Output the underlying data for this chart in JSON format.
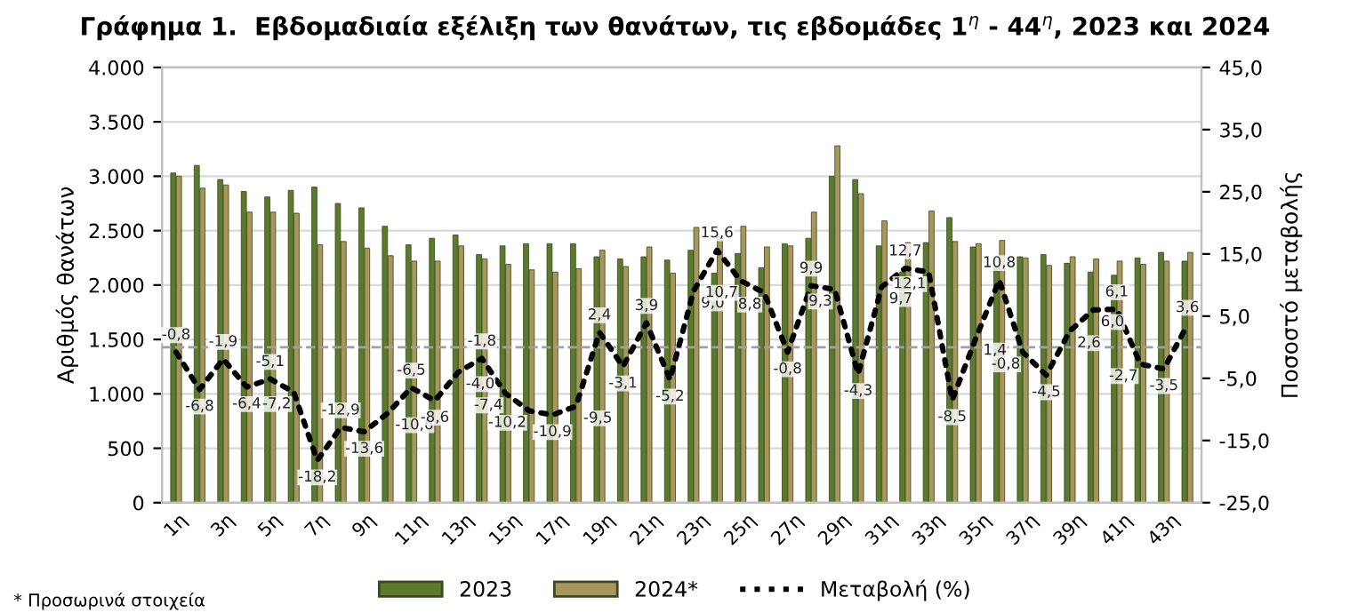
{
  "chart_data": {
    "type": "bar",
    "title": "Γράφημα 1.  Εβδομαδιαία εξέλιξη των θανάτων, τις εβδομάδες 1$^{η}$ - 44$^{η}$, 2023 και 2024",
    "ylabel": "Αριθμός θανάτων",
    "y2label": "Ποσοστό μεταβολής",
    "categories": [
      "1η",
      null,
      "3η",
      null,
      "5η",
      null,
      "7η",
      null,
      "9η",
      null,
      "11η",
      null,
      "13η",
      null,
      "15η",
      null,
      "17η",
      null,
      "19η",
      null,
      "21η",
      null,
      "23η",
      null,
      "25η",
      null,
      "27η",
      null,
      "29η",
      null,
      "31η",
      null,
      "33η",
      null,
      "35η",
      null,
      "37η",
      null,
      "39η",
      null,
      "41η",
      null,
      "43η",
      null
    ],
    "series": [
      {
        "name": "2023",
        "color": "#5b7a2c",
        "values": [
          3030,
          3100,
          2970,
          2860,
          2810,
          2870,
          2900,
          2750,
          2710,
          2540,
          2370,
          2430,
          2460,
          2280,
          2360,
          2380,
          2380,
          2380,
          2260,
          2240,
          2260,
          2230,
          2320,
          2110,
          2290,
          2160,
          2380,
          2430,
          3000,
          2970,
          2360,
          2120,
          2390,
          2620,
          2350,
          2170,
          2260,
          2280,
          2200,
          2120,
          2090,
          2250,
          2300,
          2220
        ]
      },
      {
        "name": "2024*",
        "color": "#a8965a",
        "values": [
          3000,
          2890,
          2920,
          2670,
          2670,
          2660,
          2370,
          2400,
          2340,
          2270,
          2220,
          2220,
          2360,
          2240,
          2190,
          2140,
          2120,
          2150,
          2320,
          2170,
          2350,
          2110,
          2530,
          2440,
          2540,
          2350,
          2360,
          2670,
          3280,
          2840,
          2590,
          2390,
          2680,
          2400,
          2380,
          2410,
          2250,
          2180,
          2260,
          2240,
          2220,
          2190,
          2220,
          2300
        ]
      },
      {
        "name": "Μεταβολή (%)",
        "type": "line",
        "axis": "y2",
        "color": "#000000",
        "line_style": "dotted",
        "marker": "none",
        "values": [
          -0.8,
          -6.8,
          -1.9,
          -6.4,
          -5.1,
          -7.2,
          -18.2,
          -12.9,
          -13.6,
          -10.6,
          -6.5,
          -8.6,
          -4.0,
          -1.8,
          -7.4,
          -10.2,
          -10.9,
          -9.5,
          2.4,
          -3.1,
          3.9,
          -5.2,
          9.0,
          15.6,
          10.7,
          8.8,
          -0.8,
          9.9,
          9.3,
          -4.3,
          9.7,
          12.7,
          12.1,
          -8.5,
          1.4,
          10.8,
          -0.8,
          -4.5,
          2.6,
          6.0,
          6.1,
          -2.7,
          -3.5,
          3.6
        ],
        "value_labels": [
          "-0,8",
          "-6,8",
          "-1,9",
          "-6,4",
          "-5,1",
          "-7,2",
          "-18,2",
          "-12,9",
          "-13,6",
          "-10,6",
          "-6,5",
          "-8,6",
          "-4,0",
          "-1,8",
          "-7,4",
          "-10,2",
          "-10,9",
          "-9,5",
          "2,4",
          "-3,1",
          "3,9",
          "-5,2",
          "9,0",
          "15,6",
          "10,7",
          "8,8",
          "-0,8",
          "9,9",
          "9,3",
          "-4,3",
          "9,7",
          "12,7",
          "12,1",
          "-8,5",
          "1,4",
          "10,8",
          "-0,8",
          "-4,5",
          "2,6",
          "6,0",
          "6,1",
          "-2,7",
          "-3,5",
          "3,6"
        ]
      }
    ],
    "ylim": [
      0,
      4000
    ],
    "yticks": [
      0,
      {
        "value": 500,
        "label": "500"
      },
      {
        "value": 1000,
        "label": "1.000"
      },
      {
        "value": 1500,
        "label": "1.500"
      },
      {
        "value": 2000,
        "label": "2.000"
      },
      {
        "value": 2500,
        "label": "2.500"
      },
      {
        "value": 3000,
        "label": "3.000"
      },
      {
        "value": 3500,
        "label": "3.500"
      },
      {
        "value": 4000,
        "label": "4.000"
      }
    ],
    "y2lim": [
      -25,
      45
    ],
    "y2ticks": [
      {
        "value": -25,
        "label": "-25,0"
      },
      {
        "value": -15,
        "label": "-15,0"
      },
      {
        "value": -5,
        "label": "-5,0"
      },
      {
        "value": 5,
        "label": "5,0"
      },
      {
        "value": 15,
        "label": "15,0"
      },
      {
        "value": 25,
        "label": "25,0"
      },
      {
        "value": 35,
        "label": "35,0"
      },
      {
        "value": 45,
        "label": "45,0"
      }
    ],
    "ref_lines": [
      {
        "axis": "y2",
        "value": 0,
        "color": "#a0a0a0",
        "line_style": "dashed"
      }
    ],
    "grid": "y",
    "legend": "bottom",
    "annotations": [
      "* Προσωρινά στοιχεία"
    ]
  }
}
